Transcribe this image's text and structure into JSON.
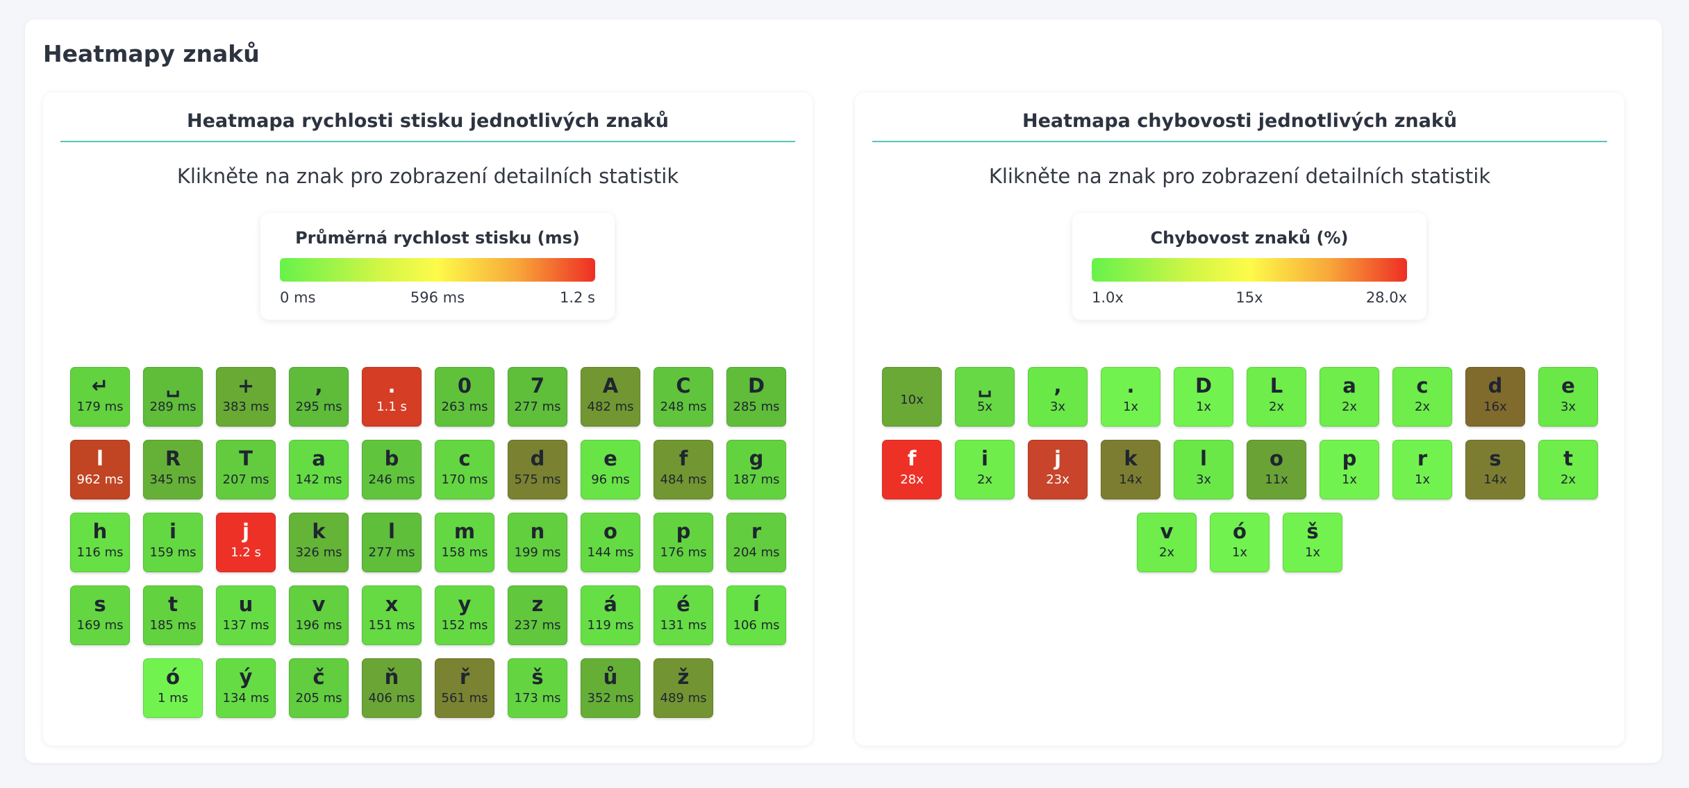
{
  "page": {
    "title": "Heatmapy znaků"
  },
  "speed_panel": {
    "title": "Heatmapa rychlosti stisku jednotlivých znaků",
    "subtitle": "Klikněte na znak pro zobrazení detailních statistik",
    "legend": {
      "title": "Průměrná rychlost stisku (ms)",
      "min": "0 ms",
      "mid": "596 ms",
      "max": "1.2 s"
    },
    "keys": [
      {
        "ch": "↵",
        "val": "179 ms",
        "color": "#63d23f"
      },
      {
        "ch": "␣",
        "val": "289 ms",
        "color": "#5fbd3a"
      },
      {
        "ch": "+",
        "val": "383 ms",
        "color": "#68aa34"
      },
      {
        "ch": ",",
        "val": "295 ms",
        "color": "#5fbb3a"
      },
      {
        "ch": ".",
        "val": "1.1 s",
        "color": "#d53d24"
      },
      {
        "ch": "0",
        "val": "263 ms",
        "color": "#60c23b"
      },
      {
        "ch": "7",
        "val": "277 ms",
        "color": "#5fbe3a"
      },
      {
        "ch": "A",
        "val": "482 ms",
        "color": "#729632"
      },
      {
        "ch": "C",
        "val": "248 ms",
        "color": "#60c53c"
      },
      {
        "ch": "D",
        "val": "285 ms",
        "color": "#5fbd3a"
      },
      {
        "ch": "l",
        "val": "962 ms",
        "color": "#c14523"
      },
      {
        "ch": "R",
        "val": "345 ms",
        "color": "#65b137"
      },
      {
        "ch": "T",
        "val": "207 ms",
        "color": "#62cc3e"
      },
      {
        "ch": "a",
        "val": "142 ms",
        "color": "#65dc44"
      },
      {
        "ch": "b",
        "val": "246 ms",
        "color": "#60c53c"
      },
      {
        "ch": "c",
        "val": "170 ms",
        "color": "#64d641"
      },
      {
        "ch": "d",
        "val": "575 ms",
        "color": "#7a8130"
      },
      {
        "ch": "e",
        "val": "96 ms",
        "color": "#68e447"
      },
      {
        "ch": "f",
        "val": "484 ms",
        "color": "#729632"
      },
      {
        "ch": "g",
        "val": "187 ms",
        "color": "#63d23f"
      },
      {
        "ch": "h",
        "val": "116 ms",
        "color": "#67e046"
      },
      {
        "ch": "i",
        "val": "159 ms",
        "color": "#64d842"
      },
      {
        "ch": "j",
        "val": "1.2 s",
        "color": "#ee3127"
      },
      {
        "ch": "k",
        "val": "326 ms",
        "color": "#64b437"
      },
      {
        "ch": "l",
        "val": "277 ms",
        "color": "#5fbe3a"
      },
      {
        "ch": "m",
        "val": "158 ms",
        "color": "#64d842"
      },
      {
        "ch": "n",
        "val": "199 ms",
        "color": "#62cf3e"
      },
      {
        "ch": "o",
        "val": "144 ms",
        "color": "#65db43"
      },
      {
        "ch": "p",
        "val": "176 ms",
        "color": "#63d440"
      },
      {
        "ch": "r",
        "val": "204 ms",
        "color": "#62cd3e"
      },
      {
        "ch": "s",
        "val": "169 ms",
        "color": "#64d641"
      },
      {
        "ch": "t",
        "val": "185 ms",
        "color": "#63d23f"
      },
      {
        "ch": "u",
        "val": "137 ms",
        "color": "#65dc44"
      },
      {
        "ch": "v",
        "val": "196 ms",
        "color": "#62d03f"
      },
      {
        "ch": "x",
        "val": "151 ms",
        "color": "#65da43"
      },
      {
        "ch": "y",
        "val": "152 ms",
        "color": "#65d942"
      },
      {
        "ch": "z",
        "val": "237 ms",
        "color": "#61c73c"
      },
      {
        "ch": "á",
        "val": "119 ms",
        "color": "#66df45"
      },
      {
        "ch": "é",
        "val": "131 ms",
        "color": "#66dd45"
      },
      {
        "ch": "í",
        "val": "106 ms",
        "color": "#67e246"
      },
      {
        "ch": "ó",
        "val": "1 ms",
        "color": "#72f24e"
      },
      {
        "ch": "ý",
        "val": "134 ms",
        "color": "#66dc44"
      },
      {
        "ch": "č",
        "val": "205 ms",
        "color": "#62cd3e"
      },
      {
        "ch": "ň",
        "val": "406 ms",
        "color": "#6aa535"
      },
      {
        "ch": "ř",
        "val": "561 ms",
        "color": "#798331"
      },
      {
        "ch": "š",
        "val": "173 ms",
        "color": "#64d541"
      },
      {
        "ch": "ů",
        "val": "352 ms",
        "color": "#65af37"
      },
      {
        "ch": "ž",
        "val": "489 ms",
        "color": "#739432"
      }
    ]
  },
  "error_panel": {
    "title": "Heatmapa chybovosti jednotlivých znaků",
    "subtitle": "Klikněte na znak pro zobrazení detailních statistik",
    "legend": {
      "title": "Chybovost znaků (%)",
      "min": "1.0x",
      "mid": "15x",
      "max": "28.0x"
    },
    "keys": [
      {
        "ch": "",
        "val": "10x",
        "color": "#6aa935"
      },
      {
        "ch": "␣",
        "val": "5x",
        "color": "#66d944"
      },
      {
        "ch": ",",
        "val": "3x",
        "color": "#6ae848"
      },
      {
        "ch": ".",
        "val": "1x",
        "color": "#72f24e"
      },
      {
        "ch": "D",
        "val": "1x",
        "color": "#72f24e"
      },
      {
        "ch": "L",
        "val": "2x",
        "color": "#6eed4b"
      },
      {
        "ch": "a",
        "val": "2x",
        "color": "#6eed4b"
      },
      {
        "ch": "c",
        "val": "2x",
        "color": "#6eed4b"
      },
      {
        "ch": "d",
        "val": "16x",
        "color": "#806a2c"
      },
      {
        "ch": "e",
        "val": "3x",
        "color": "#6ae848"
      },
      {
        "ch": "f",
        "val": "28x",
        "color": "#ee3127"
      },
      {
        "ch": "i",
        "val": "2x",
        "color": "#6eed4b"
      },
      {
        "ch": "j",
        "val": "23x",
        "color": "#c8442a"
      },
      {
        "ch": "k",
        "val": "14x",
        "color": "#7c7d30"
      },
      {
        "ch": "l",
        "val": "3x",
        "color": "#6ae848"
      },
      {
        "ch": "o",
        "val": "11x",
        "color": "#6aa235"
      },
      {
        "ch": "p",
        "val": "1x",
        "color": "#72f24e"
      },
      {
        "ch": "r",
        "val": "1x",
        "color": "#72f24e"
      },
      {
        "ch": "s",
        "val": "14x",
        "color": "#7c7d30"
      },
      {
        "ch": "t",
        "val": "2x",
        "color": "#6eed4b"
      },
      {
        "ch": "v",
        "val": "2x",
        "color": "#6eed4b"
      },
      {
        "ch": "ó",
        "val": "1x",
        "color": "#72f24e"
      },
      {
        "ch": "š",
        "val": "1x",
        "color": "#72f24e"
      }
    ]
  }
}
